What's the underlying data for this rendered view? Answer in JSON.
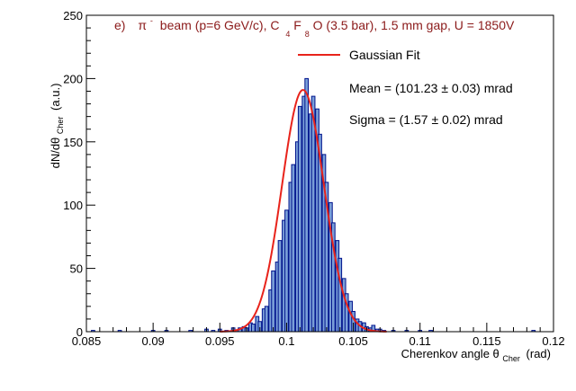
{
  "chart_data": {
    "type": "bar",
    "title_prefix": "e)",
    "title_particle": "π",
    "title_particle_sup": "-",
    "title_beam": "beam (p=6 GeV/c), C",
    "title_sub1": "4",
    "title_f": "F",
    "title_sub2": "8",
    "title_rest": "O (3.5 bar), 1.5 mm gap, U = 1850V",
    "xlabel_main": "Cherenkov angle θ",
    "xlabel_sub": "Cher",
    "xlabel_unit": "(rad)",
    "ylabel_main": "dN/dθ",
    "ylabel_sub": "Cher",
    "ylabel_unit": "(a.u.)",
    "xlim": [
      0.085,
      0.12
    ],
    "ylim": [
      0,
      250
    ],
    "xticks": [
      "0.085",
      "0.09",
      "0.095",
      "0.1",
      "0.105",
      "0.11",
      "0.115",
      "0.12"
    ],
    "xtick_values": [
      0.085,
      0.09,
      0.095,
      0.1,
      0.105,
      0.11,
      0.115,
      0.12
    ],
    "yticks": [
      "0",
      "50",
      "100",
      "150",
      "200",
      "250"
    ],
    "ytick_values": [
      0,
      50,
      100,
      150,
      200,
      250
    ],
    "bin_width": 0.00025,
    "hist_color": "#00138c",
    "fill_color": "#7a9fd8",
    "fit_color": "#e8231b",
    "fit": {
      "amplitude": 191,
      "mean": 0.10123,
      "sigma": 0.00157
    },
    "legend": {
      "fit_label": "Gaussian Fit",
      "mean_text": "Mean  = (101.23  ± 0.03) mrad",
      "sigma_text": "Sigma = (1.57  ± 0.02) mrad"
    },
    "bins": [
      {
        "x": 0.0855,
        "y": 1
      },
      {
        "x": 0.0858,
        "y": 0
      },
      {
        "x": 0.0875,
        "y": 1
      },
      {
        "x": 0.09,
        "y": 1
      },
      {
        "x": 0.091,
        "y": 1
      },
      {
        "x": 0.0928,
        "y": 1
      },
      {
        "x": 0.094,
        "y": 2
      },
      {
        "x": 0.0945,
        "y": 1
      },
      {
        "x": 0.095,
        "y": 2
      },
      {
        "x": 0.0955,
        "y": 1
      },
      {
        "x": 0.096,
        "y": 3
      },
      {
        "x": 0.0963,
        "y": 1
      },
      {
        "x": 0.0965,
        "y": 3
      },
      {
        "x": 0.0968,
        "y": 4
      },
      {
        "x": 0.097,
        "y": 3
      },
      {
        "x": 0.0973,
        "y": 7
      },
      {
        "x": 0.0975,
        "y": 6
      },
      {
        "x": 0.0978,
        "y": 12
      },
      {
        "x": 0.098,
        "y": 8
      },
      {
        "x": 0.0983,
        "y": 18
      },
      {
        "x": 0.0985,
        "y": 20
      },
      {
        "x": 0.0988,
        "y": 33
      },
      {
        "x": 0.099,
        "y": 48
      },
      {
        "x": 0.0993,
        "y": 55
      },
      {
        "x": 0.0995,
        "y": 72
      },
      {
        "x": 0.0998,
        "y": 88
      },
      {
        "x": 0.1,
        "y": 96
      },
      {
        "x": 0.1003,
        "y": 118
      },
      {
        "x": 0.1005,
        "y": 132
      },
      {
        "x": 0.1008,
        "y": 150
      },
      {
        "x": 0.101,
        "y": 178
      },
      {
        "x": 0.1013,
        "y": 186
      },
      {
        "x": 0.1015,
        "y": 200
      },
      {
        "x": 0.1018,
        "y": 172
      },
      {
        "x": 0.102,
        "y": 186
      },
      {
        "x": 0.1023,
        "y": 176
      },
      {
        "x": 0.1025,
        "y": 156
      },
      {
        "x": 0.1028,
        "y": 140
      },
      {
        "x": 0.103,
        "y": 118
      },
      {
        "x": 0.1033,
        "y": 102
      },
      {
        "x": 0.1035,
        "y": 86
      },
      {
        "x": 0.1038,
        "y": 72
      },
      {
        "x": 0.104,
        "y": 58
      },
      {
        "x": 0.1043,
        "y": 42
      },
      {
        "x": 0.1045,
        "y": 30
      },
      {
        "x": 0.1048,
        "y": 24
      },
      {
        "x": 0.105,
        "y": 16
      },
      {
        "x": 0.1053,
        "y": 10
      },
      {
        "x": 0.1055,
        "y": 8
      },
      {
        "x": 0.1058,
        "y": 7
      },
      {
        "x": 0.106,
        "y": 4
      },
      {
        "x": 0.1063,
        "y": 3
      },
      {
        "x": 0.1065,
        "y": 5
      },
      {
        "x": 0.1068,
        "y": 2
      },
      {
        "x": 0.107,
        "y": 2
      },
      {
        "x": 0.1073,
        "y": 1
      },
      {
        "x": 0.108,
        "y": 1
      },
      {
        "x": 0.109,
        "y": 1
      },
      {
        "x": 0.11,
        "y": 1
      },
      {
        "x": 0.1108,
        "y": 1
      },
      {
        "x": 0.1185,
        "y": 1
      }
    ]
  }
}
